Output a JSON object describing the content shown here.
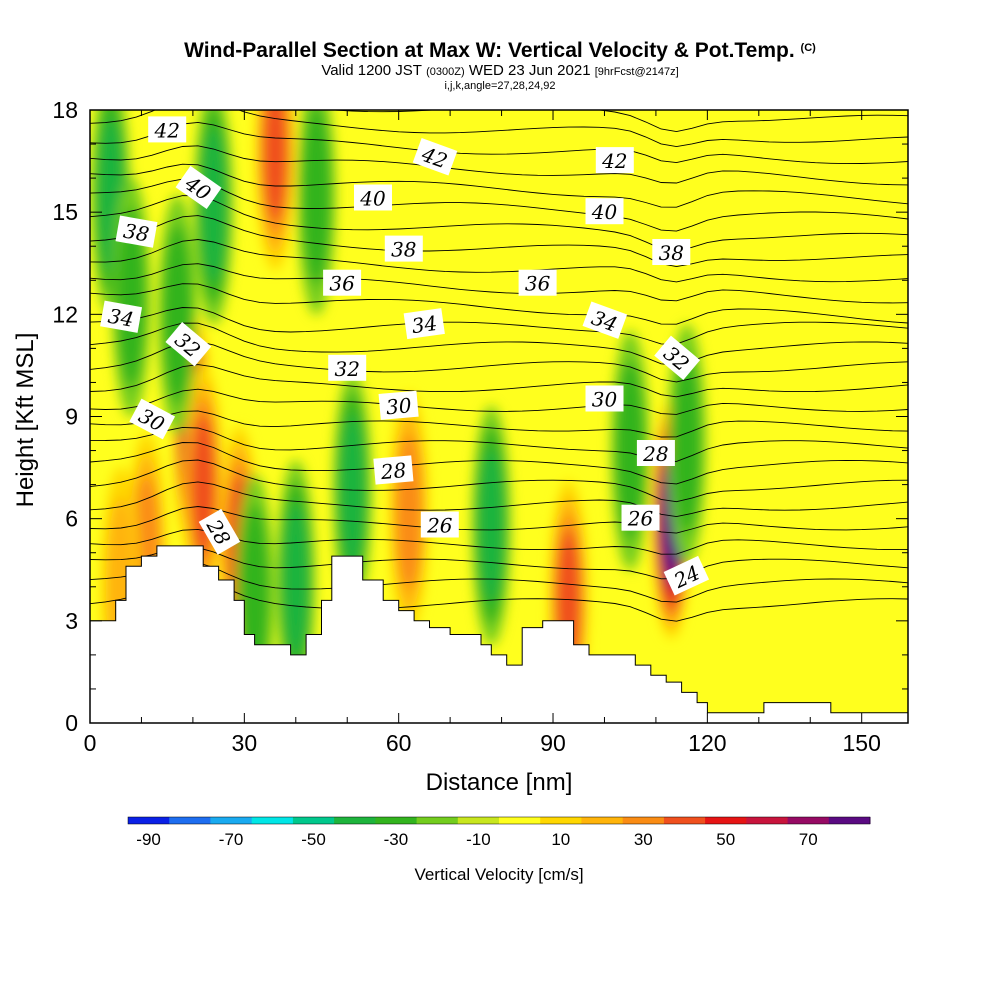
{
  "title": {
    "main": "Wind-Parallel Section at Max W: Vertical Velocity & Pot.Temp.",
    "copyright": "(C)",
    "valid_prefix": "Valid 1200 JST",
    "utc": "(0300Z)",
    "date": "WED 23 Jun 2021",
    "forecast": "[9hrFcst@2147z]",
    "params": "i,j,k,angle=27,28,24,92"
  },
  "chart_data": {
    "type": "heatmap",
    "xlabel": "Distance [nm]",
    "ylabel": "Height [Kft MSL]",
    "xlim": [
      0,
      159
    ],
    "ylim": [
      0,
      18
    ],
    "xticks": [
      0,
      30,
      60,
      90,
      120,
      150
    ],
    "yticks": [
      0,
      3,
      6,
      9,
      12,
      15,
      18
    ],
    "colorbar": {
      "label": "Vertical Velocity [cm/s]",
      "levels": [
        -90,
        -80,
        -70,
        -60,
        -50,
        -40,
        -30,
        -20,
        -10,
        0,
        10,
        20,
        30,
        40,
        50,
        60,
        70,
        80
      ],
      "tick_labels": [
        "-90",
        "-70",
        "-50",
        "-30",
        "-10",
        "10",
        "30",
        "50",
        "70"
      ],
      "colors": [
        "#0a20e6",
        "#1e6ef0",
        "#19aaf0",
        "#00e6e6",
        "#00c88c",
        "#1eb43c",
        "#32b41e",
        "#73cd1e",
        "#c8e61e",
        "#ffff1e",
        "#ffd700",
        "#ffb40a",
        "#fa8c14",
        "#f0501e",
        "#e61414",
        "#c8143c",
        "#960a64",
        "#5a0a82"
      ]
    },
    "terrain": [
      [
        0,
        3.0
      ],
      [
        5,
        3.0
      ],
      [
        5,
        3.6
      ],
      [
        7,
        3.6
      ],
      [
        7,
        4.6
      ],
      [
        10,
        4.6
      ],
      [
        10,
        4.9
      ],
      [
        13,
        4.9
      ],
      [
        13,
        5.2
      ],
      [
        22,
        5.2
      ],
      [
        22,
        4.6
      ],
      [
        25,
        4.6
      ],
      [
        25,
        4.2
      ],
      [
        28,
        4.2
      ],
      [
        28,
        3.6
      ],
      [
        30,
        3.6
      ],
      [
        30,
        2.6
      ],
      [
        32,
        2.6
      ],
      [
        32,
        2.3
      ],
      [
        39,
        2.3
      ],
      [
        39,
        2.0
      ],
      [
        42,
        2.0
      ],
      [
        42,
        2.6
      ],
      [
        45,
        2.6
      ],
      [
        45,
        3.6
      ],
      [
        47,
        3.6
      ],
      [
        47,
        4.9
      ],
      [
        53,
        4.9
      ],
      [
        53,
        4.2
      ],
      [
        57,
        4.2
      ],
      [
        57,
        3.6
      ],
      [
        60,
        3.6
      ],
      [
        60,
        3.3
      ],
      [
        63,
        3.3
      ],
      [
        63,
        3.0
      ],
      [
        66,
        3.0
      ],
      [
        66,
        2.8
      ],
      [
        70,
        2.8
      ],
      [
        70,
        2.6
      ],
      [
        76,
        2.6
      ],
      [
        76,
        2.3
      ],
      [
        78,
        2.3
      ],
      [
        78,
        2.0
      ],
      [
        81,
        2.0
      ],
      [
        81,
        1.7
      ],
      [
        84,
        1.7
      ],
      [
        84,
        2.8
      ],
      [
        88,
        2.8
      ],
      [
        88,
        3.0
      ],
      [
        94,
        3.0
      ],
      [
        94,
        2.3
      ],
      [
        97,
        2.3
      ],
      [
        97,
        2.0
      ],
      [
        106,
        2.0
      ],
      [
        106,
        1.7
      ],
      [
        109,
        1.7
      ],
      [
        109,
        1.4
      ],
      [
        112,
        1.4
      ],
      [
        112,
        1.2
      ],
      [
        115,
        1.2
      ],
      [
        115,
        0.9
      ],
      [
        118,
        0.9
      ],
      [
        118,
        0.6
      ],
      [
        120,
        0.6
      ],
      [
        120,
        0.3
      ],
      [
        131,
        0.3
      ],
      [
        131,
        0.6
      ],
      [
        144,
        0.6
      ],
      [
        144,
        0.3
      ],
      [
        159,
        0.3
      ]
    ],
    "updrafts": [
      {
        "x": 20,
        "y": 8.5,
        "value": 55
      },
      {
        "x": 22,
        "y": 7.0,
        "value": 42
      },
      {
        "x": 29,
        "y": 5.2,
        "value": 35
      },
      {
        "x": 36,
        "y": 16.8,
        "value": 42
      },
      {
        "x": 62,
        "y": 6.2,
        "value": 25
      },
      {
        "x": 93,
        "y": 3.6,
        "value": 35
      },
      {
        "x": 113,
        "y": 6.0,
        "value": 75
      },
      {
        "x": 11,
        "y": 5.0,
        "value": 25
      },
      {
        "x": 6,
        "y": 4.0,
        "value": 18
      }
    ],
    "downdrafts": [
      {
        "x": 4,
        "y": 15.5,
        "value": -30
      },
      {
        "x": 8,
        "y": 12.5,
        "value": -15
      },
      {
        "x": 17,
        "y": 12.0,
        "value": -20
      },
      {
        "x": 24,
        "y": 15.2,
        "value": -30
      },
      {
        "x": 32,
        "y": 3.8,
        "value": -18
      },
      {
        "x": 40,
        "y": 4.2,
        "value": -25
      },
      {
        "x": 44,
        "y": 15.5,
        "value": -20
      },
      {
        "x": 51,
        "y": 6.8,
        "value": -30
      },
      {
        "x": 78,
        "y": 5.8,
        "value": -25
      },
      {
        "x": 105,
        "y": 8.0,
        "value": -22
      },
      {
        "x": 116,
        "y": 8.2,
        "value": -22
      }
    ],
    "contour_labels": [
      {
        "text": "42",
        "x": 15,
        "y": 17.4,
        "angle": 0
      },
      {
        "text": "40",
        "x": 21,
        "y": 15.7,
        "angle": 35
      },
      {
        "text": "38",
        "x": 9,
        "y": 14.4,
        "angle": 10
      },
      {
        "text": "34",
        "x": 6,
        "y": 11.9,
        "angle": 10
      },
      {
        "text": "32",
        "x": 19,
        "y": 11.1,
        "angle": 40
      },
      {
        "text": "30",
        "x": 12,
        "y": 8.9,
        "angle": 28
      },
      {
        "text": "28",
        "x": 25,
        "y": 5.6,
        "angle": 60
      },
      {
        "text": "42",
        "x": 67,
        "y": 16.6,
        "angle": 20
      },
      {
        "text": "40",
        "x": 55,
        "y": 15.4,
        "angle": 0
      },
      {
        "text": "38",
        "x": 61,
        "y": 13.9,
        "angle": 0
      },
      {
        "text": "36",
        "x": 49,
        "y": 12.9,
        "angle": 0
      },
      {
        "text": "34",
        "x": 65,
        "y": 11.7,
        "angle": -8
      },
      {
        "text": "32",
        "x": 50,
        "y": 10.4,
        "angle": 0
      },
      {
        "text": "30",
        "x": 60,
        "y": 9.3,
        "angle": -5
      },
      {
        "text": "28",
        "x": 59,
        "y": 7.4,
        "angle": -5
      },
      {
        "text": "26",
        "x": 68,
        "y": 5.8,
        "angle": 0
      },
      {
        "text": "42",
        "x": 102,
        "y": 16.5,
        "angle": 0
      },
      {
        "text": "40",
        "x": 100,
        "y": 15.0,
        "angle": 0
      },
      {
        "text": "38",
        "x": 113,
        "y": 13.8,
        "angle": 0
      },
      {
        "text": "36",
        "x": 87,
        "y": 12.9,
        "angle": 0
      },
      {
        "text": "34",
        "x": 100,
        "y": 11.8,
        "angle": 20
      },
      {
        "text": "30",
        "x": 100,
        "y": 9.5,
        "angle": 0
      },
      {
        "text": "32",
        "x": 114,
        "y": 10.7,
        "angle": 40
      },
      {
        "text": "28",
        "x": 110,
        "y": 7.9,
        "angle": 0
      },
      {
        "text": "26",
        "x": 107,
        "y": 6.0,
        "angle": 0
      },
      {
        "text": "24",
        "x": 116,
        "y": 4.3,
        "angle": -25
      }
    ]
  }
}
